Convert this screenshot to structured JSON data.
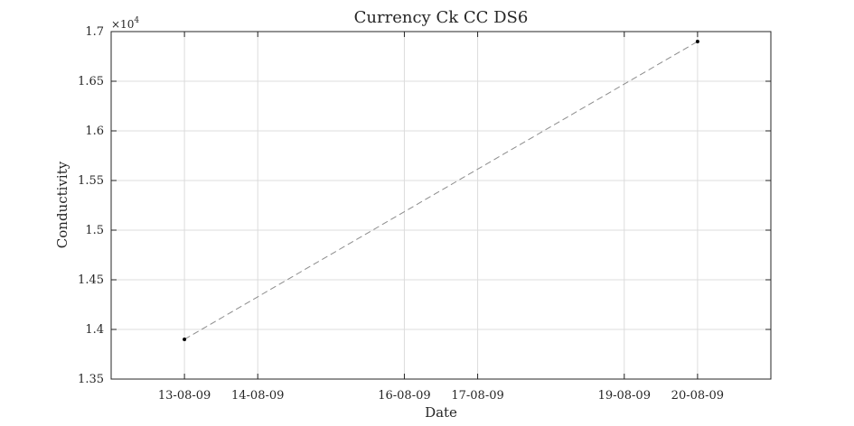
{
  "chart_data": {
    "type": "line",
    "title": "Currency Ck CC DS6",
    "xlabel": "Date",
    "ylabel": "Conductivity",
    "y_exponent_label": "×10",
    "y_exponent_power": "4",
    "y_scale": 10000,
    "ylim": [
      13500,
      17000
    ],
    "xlim": [
      "2009-08-12",
      "2009-08-21"
    ],
    "x_tick_dates": [
      "2009-08-13",
      "2009-08-14",
      "2009-08-16",
      "2009-08-17",
      "2009-08-19",
      "2009-08-20"
    ],
    "x_tick_labels": [
      "13-08-09",
      "14-08-09",
      "16-08-09",
      "17-08-09",
      "19-08-09",
      "20-08-09"
    ],
    "y_ticks": [
      13500,
      14000,
      14500,
      15000,
      15500,
      16000,
      16500,
      17000
    ],
    "y_tick_labels": [
      "1.35",
      "1.4",
      "1.45",
      "1.5",
      "1.55",
      "1.6",
      "1.65",
      "1.7"
    ],
    "grid": true,
    "series": [
      {
        "x": [
          "2009-08-13",
          "2009-08-20"
        ],
        "y": [
          13900,
          16900
        ],
        "line_style": "dashed",
        "line_color": "#8c8c8c",
        "marker_color": "#000000"
      }
    ]
  }
}
